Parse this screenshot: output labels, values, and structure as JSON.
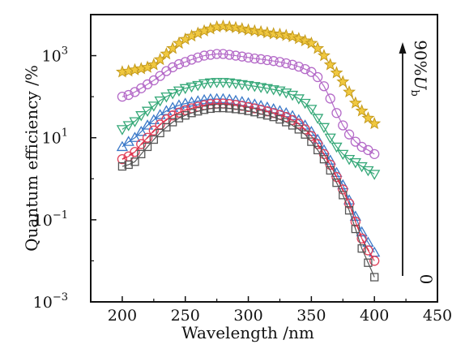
{
  "chart_data": {
    "type": "scatter",
    "title": "",
    "xlabel": "Wavelength /nm",
    "ylabel": "Quantum efficiency /%",
    "xlim": [
      175,
      450
    ],
    "xticks": [
      200,
      250,
      300,
      350,
      400,
      450
    ],
    "ylim": [
      0.001,
      10000
    ],
    "yscale": "log",
    "yticks": [
      {
        "value": 0.001,
        "base": "10",
        "exp": "−3"
      },
      {
        "value": 0.1,
        "base": "10",
        "exp": "−1"
      },
      {
        "value": 10,
        "base": "10",
        "exp": "1"
      },
      {
        "value": 1000,
        "base": "10",
        "exp": "3"
      }
    ],
    "grid": false,
    "annotation": {
      "bottom_label": "0",
      "top_label_prefix": "90%",
      "top_label_var": "U",
      "top_label_sub": "b"
    },
    "x": [
      200,
      205,
      210,
      215,
      220,
      225,
      230,
      235,
      240,
      245,
      250,
      255,
      260,
      265,
      270,
      275,
      280,
      285,
      290,
      295,
      300,
      305,
      310,
      315,
      320,
      325,
      330,
      335,
      340,
      345,
      350,
      355,
      360,
      365,
      370,
      375,
      380,
      385,
      390,
      395,
      400
    ],
    "series": [
      {
        "marker": "star",
        "color": "#c49a1c",
        "fill": "#f0c840",
        "values": [
          400,
          420,
          450,
          480,
          520,
          600,
          800,
          1100,
          1500,
          2000,
          2500,
          3000,
          3500,
          4000,
          4500,
          5000,
          5200,
          5000,
          4800,
          4500,
          4200,
          4000,
          3800,
          3600,
          3400,
          3300,
          3100,
          2900,
          2600,
          2300,
          2000,
          1500,
          1000,
          600,
          380,
          230,
          130,
          70,
          45,
          30,
          22
        ]
      },
      {
        "marker": "circle",
        "color": "#b46ac8",
        "fill": "none",
        "values": [
          100,
          110,
          130,
          160,
          200,
          250,
          320,
          420,
          520,
          620,
          700,
          800,
          900,
          1000,
          1050,
          1100,
          1100,
          1050,
          1000,
          950,
          900,
          850,
          820,
          780,
          740,
          700,
          650,
          600,
          540,
          470,
          400,
          300,
          180,
          90,
          40,
          20,
          12,
          8,
          6,
          5,
          4
        ]
      },
      {
        "marker": "triangle-down",
        "color": "#35a878",
        "fill": "none",
        "values": [
          16,
          20,
          25,
          35,
          45,
          60,
          80,
          100,
          120,
          140,
          160,
          175,
          190,
          210,
          220,
          225,
          225,
          220,
          210,
          200,
          190,
          180,
          170,
          160,
          150,
          140,
          125,
          110,
          90,
          70,
          50,
          30,
          18,
          10,
          6,
          4,
          3,
          2.5,
          2,
          1.6,
          1.3
        ]
      },
      {
        "marker": "triangle-up",
        "color": "#3a78c8",
        "fill": "none",
        "values": [
          6,
          8,
          10,
          14,
          20,
          27,
          36,
          45,
          54,
          62,
          68,
          73,
          78,
          83,
          87,
          88,
          88,
          85,
          80,
          75,
          70,
          65,
          60,
          55,
          50,
          45,
          40,
          34,
          27,
          20,
          14,
          9,
          5,
          2.8,
          1.4,
          0.7,
          0.3,
          0.12,
          0.05,
          0.028,
          0.016
        ]
      },
      {
        "marker": "circle",
        "color": "#e0405a",
        "fill": "none",
        "values": [
          3,
          3.5,
          4.5,
          7,
          10,
          15,
          21,
          28,
          35,
          41,
          47,
          52,
          57,
          62,
          66,
          68,
          68,
          66,
          63,
          60,
          56,
          52,
          48,
          44,
          40,
          36,
          32,
          27,
          22,
          16,
          11,
          7,
          4,
          2.2,
          1.1,
          0.55,
          0.25,
          0.09,
          0.035,
          0.018,
          0.01
        ]
      },
      {
        "marker": "square",
        "color": "#555555",
        "fill": "none",
        "values": [
          2,
          2.2,
          2.6,
          4,
          6,
          9,
          13,
          18,
          24,
          30,
          35,
          40,
          44,
          48,
          51,
          53,
          53,
          52,
          50,
          48,
          45,
          42,
          38,
          35,
          32,
          28,
          24,
          20,
          16,
          12,
          8,
          5,
          3,
          1.6,
          0.8,
          0.4,
          0.17,
          0.06,
          0.02,
          0.009,
          0.004
        ]
      }
    ],
    "red_dashed_line": {
      "x": [
        200,
        210,
        220,
        230,
        240,
        250,
        260,
        270,
        280,
        290,
        300,
        310,
        320,
        330,
        340,
        350,
        360,
        370,
        380,
        390,
        400
      ],
      "values": [
        3,
        4.5,
        10,
        21,
        35,
        47,
        57,
        66,
        68,
        63,
        56,
        48,
        40,
        32,
        22,
        11,
        4,
        1.1,
        0.25,
        0.035,
        0.01
      ]
    }
  }
}
